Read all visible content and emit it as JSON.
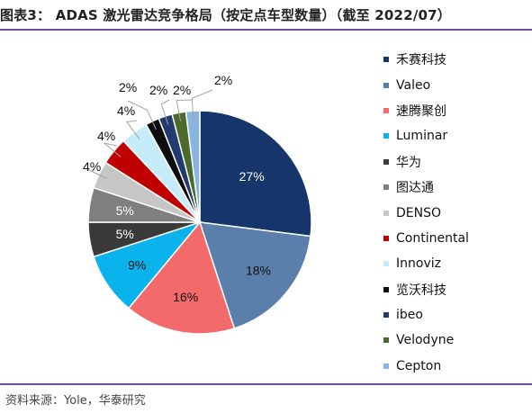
{
  "title": "图表3： ADAS 激光雷达竞争格局（按定点车型数量）（截至 2022/07）",
  "source": "资料来源：Yole，华泰研究",
  "chart_data": {
    "type": "pie",
    "categories": [
      "禾赛科技",
      "Valeo",
      "速腾聚创",
      "Luminar",
      "华为",
      "图达通",
      "DENSO",
      "Continental",
      "Innoviz",
      "览沃科技",
      "ibeo",
      "Velodyne",
      "Cepton"
    ],
    "values": [
      27,
      18,
      16,
      9,
      5,
      5,
      4,
      4,
      4,
      2,
      2,
      2,
      2
    ],
    "value_labels": [
      "27%",
      "18%",
      "16%",
      "9%",
      "5%",
      "5%",
      "4%",
      "4%",
      "4%",
      "2%",
      "2%",
      "2%",
      "2%"
    ],
    "colors": [
      "#15356b",
      "#5b7fab",
      "#f36a6a",
      "#0bb3ec",
      "#3a3a3a",
      "#7f7f7f",
      "#c6c6c6",
      "#c00000",
      "#c7ecf9",
      "#0d0d0d",
      "#223a6e",
      "#4b6a2c",
      "#89b4e0"
    ],
    "legend_position": "right"
  }
}
